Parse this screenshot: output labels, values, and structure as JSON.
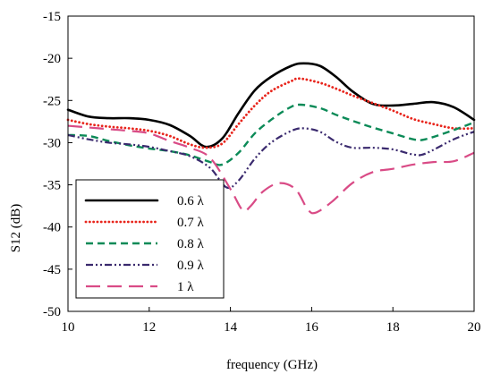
{
  "chart_data": {
    "type": "line",
    "xlabel": "frequency (GHz)",
    "ylabel": "S12 (dB)",
    "xlim": [
      10,
      20
    ],
    "ylim": [
      -50,
      -15
    ],
    "xticks": [
      10,
      12,
      14,
      16,
      18,
      20
    ],
    "yticks": [
      -50,
      -45,
      -40,
      -35,
      -30,
      -25,
      -20,
      -15
    ],
    "xtick_labels": [
      "10",
      "12",
      "14",
      "16",
      "18",
      "20"
    ],
    "ytick_labels": [
      "-50",
      "-45",
      "-40",
      "-35",
      "-30",
      "-25",
      "-20",
      "-15"
    ],
    "grid": false,
    "legend_position": "bottom-left",
    "series": [
      {
        "name": "0.6 λ",
        "color": "#000000",
        "dash": "solid",
        "points": [
          [
            10,
            -26.1
          ],
          [
            10.5,
            -26.9
          ],
          [
            11,
            -27.1
          ],
          [
            11.5,
            -27.1
          ],
          [
            12,
            -27.3
          ],
          [
            12.5,
            -27.9
          ],
          [
            13,
            -29.2
          ],
          [
            13.4,
            -30.5
          ],
          [
            13.8,
            -29.5
          ],
          [
            14.2,
            -26.5
          ],
          [
            14.6,
            -23.8
          ],
          [
            15,
            -22.2
          ],
          [
            15.5,
            -20.9
          ],
          [
            15.8,
            -20.6
          ],
          [
            16.2,
            -20.9
          ],
          [
            16.6,
            -22.2
          ],
          [
            17,
            -23.9
          ],
          [
            17.5,
            -25.4
          ],
          [
            18,
            -25.6
          ],
          [
            18.5,
            -25.4
          ],
          [
            19,
            -25.2
          ],
          [
            19.5,
            -25.8
          ],
          [
            20,
            -27.3
          ]
        ]
      },
      {
        "name": "0.7 λ",
        "color": "#e8251c",
        "dash": "dotted",
        "points": [
          [
            10,
            -27.3
          ],
          [
            10.5,
            -27.8
          ],
          [
            11,
            -28.1
          ],
          [
            11.5,
            -28.3
          ],
          [
            12,
            -28.6
          ],
          [
            12.5,
            -29.2
          ],
          [
            13,
            -30.2
          ],
          [
            13.4,
            -30.6
          ],
          [
            13.8,
            -30.1
          ],
          [
            14.2,
            -27.8
          ],
          [
            14.6,
            -25.6
          ],
          [
            15,
            -23.9
          ],
          [
            15.5,
            -22.7
          ],
          [
            15.7,
            -22.4
          ],
          [
            16.2,
            -22.9
          ],
          [
            16.6,
            -23.6
          ],
          [
            17,
            -24.4
          ],
          [
            17.5,
            -25.3
          ],
          [
            18,
            -26.2
          ],
          [
            18.5,
            -27.2
          ],
          [
            19,
            -27.8
          ],
          [
            19.5,
            -28.3
          ],
          [
            20,
            -28.3
          ]
        ]
      },
      {
        "name": "0.8 λ",
        "color": "#0b8a57",
        "dash": "dashed",
        "points": [
          [
            10,
            -29.1
          ],
          [
            10.5,
            -29.2
          ],
          [
            11,
            -29.8
          ],
          [
            11.5,
            -30.3
          ],
          [
            12,
            -30.7
          ],
          [
            12.5,
            -31.0
          ],
          [
            13,
            -31.5
          ],
          [
            13.5,
            -32.3
          ],
          [
            13.8,
            -32.6
          ],
          [
            14.2,
            -31.2
          ],
          [
            14.6,
            -28.9
          ],
          [
            15,
            -27.3
          ],
          [
            15.4,
            -26.0
          ],
          [
            15.7,
            -25.5
          ],
          [
            16.2,
            -25.9
          ],
          [
            16.6,
            -26.7
          ],
          [
            17,
            -27.4
          ],
          [
            17.5,
            -28.2
          ],
          [
            18,
            -28.9
          ],
          [
            18.5,
            -29.6
          ],
          [
            18.8,
            -29.6
          ],
          [
            19.5,
            -28.5
          ],
          [
            20,
            -27.6
          ]
        ]
      },
      {
        "name": "0.9 λ",
        "color": "#3a2a6e",
        "dash": "dash-dot-dot",
        "points": [
          [
            10,
            -29.1
          ],
          [
            10.5,
            -29.6
          ],
          [
            11,
            -30.0
          ],
          [
            11.5,
            -30.2
          ],
          [
            12,
            -30.5
          ],
          [
            12.5,
            -31.0
          ],
          [
            13,
            -31.6
          ],
          [
            13.5,
            -33.0
          ],
          [
            13.9,
            -35.3
          ],
          [
            14.2,
            -34.5
          ],
          [
            14.6,
            -31.9
          ],
          [
            15,
            -30.0
          ],
          [
            15.5,
            -28.6
          ],
          [
            15.8,
            -28.3
          ],
          [
            16.2,
            -28.7
          ],
          [
            16.6,
            -29.9
          ],
          [
            17,
            -30.6
          ],
          [
            17.5,
            -30.6
          ],
          [
            18,
            -30.8
          ],
          [
            18.5,
            -31.4
          ],
          [
            18.8,
            -31.3
          ],
          [
            19.5,
            -29.6
          ],
          [
            20,
            -28.7
          ]
        ]
      },
      {
        "name": "1 λ",
        "color": "#d94b86",
        "dash": "long-dash",
        "points": [
          [
            10,
            -28.0
          ],
          [
            10.5,
            -28.2
          ],
          [
            11,
            -28.4
          ],
          [
            11.5,
            -28.6
          ],
          [
            12,
            -28.9
          ],
          [
            12.5,
            -29.8
          ],
          [
            13,
            -30.6
          ],
          [
            13.5,
            -31.8
          ],
          [
            14,
            -35.5
          ],
          [
            14.3,
            -38.0
          ],
          [
            14.5,
            -37.5
          ],
          [
            14.8,
            -35.8
          ],
          [
            15.2,
            -34.8
          ],
          [
            15.6,
            -35.5
          ],
          [
            15.9,
            -37.9
          ],
          [
            16.1,
            -38.3
          ],
          [
            16.5,
            -37.0
          ],
          [
            17,
            -34.8
          ],
          [
            17.5,
            -33.5
          ],
          [
            18,
            -33.1
          ],
          [
            18.5,
            -32.6
          ],
          [
            19,
            -32.3
          ],
          [
            19.5,
            -32.2
          ],
          [
            20,
            -31.2
          ]
        ]
      }
    ]
  }
}
